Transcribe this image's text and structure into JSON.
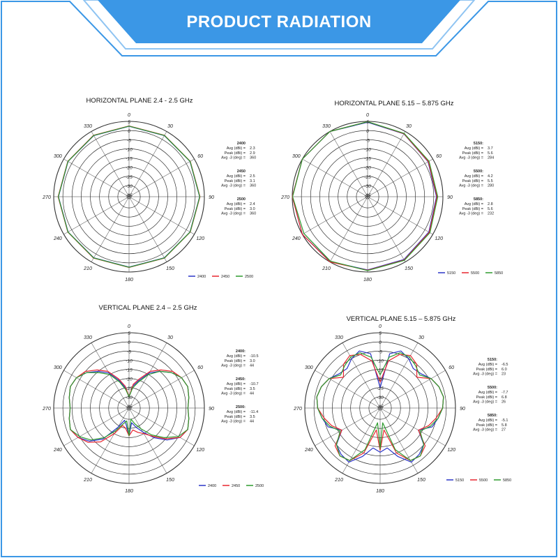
{
  "banner": {
    "title": "PRODUCT RADIATION",
    "color": "#3b97e6",
    "accent": "#8fc4f2"
  },
  "colors": {
    "frame": "#3b97e6",
    "grid": "#333333"
  },
  "chart_data": [
    {
      "type": "polar",
      "title": "HORIZONTAL PLANE 2.4 - 2.5 GHz",
      "radial_ticks": [
        "-35",
        "-30",
        "-25",
        "-20",
        "-15",
        "-10",
        "-5",
        "0",
        "5"
      ],
      "rlim": [
        -35,
        5
      ],
      "angle_ticks": [
        "0",
        "30",
        "60",
        "90",
        "120",
        "150",
        "180",
        "210",
        "240",
        "270",
        "300",
        "330"
      ],
      "grid": true,
      "legend_position": "bottom-right",
      "series": [
        {
          "name": "2400",
          "color": "#2b35c9",
          "angles": [
            0,
            30,
            60,
            90,
            120,
            150,
            180,
            210,
            240,
            270,
            300,
            330
          ],
          "values": [
            2.3,
            2.4,
            2.3,
            2.4,
            2.3,
            2.4,
            2.3,
            2.4,
            2.3,
            2.4,
            2.3,
            2.4
          ]
        },
        {
          "name": "2450",
          "color": "#e8262f",
          "angles": [
            0,
            30,
            60,
            90,
            120,
            150,
            180,
            210,
            240,
            270,
            300,
            330
          ],
          "values": [
            2.5,
            2.6,
            2.5,
            2.6,
            2.5,
            2.6,
            2.5,
            2.6,
            2.5,
            2.6,
            2.5,
            2.6
          ]
        },
        {
          "name": "2500",
          "color": "#2e9b2e",
          "angles": [
            0,
            30,
            60,
            90,
            120,
            150,
            180,
            210,
            240,
            270,
            300,
            330
          ],
          "values": [
            2.4,
            2.5,
            2.4,
            2.5,
            2.4,
            2.5,
            2.4,
            2.5,
            2.4,
            2.5,
            2.4,
            2.5
          ]
        }
      ],
      "stats": [
        {
          "freq": "2400",
          "rows": [
            {
              "label": "Avg (dBi) =",
              "value": "2.3"
            },
            {
              "label": "Peak (dBi) =",
              "value": "2.9"
            },
            {
              "label": "Avg -3 (deg) =",
              "value": "360"
            }
          ]
        },
        {
          "freq": "2450",
          "rows": [
            {
              "label": "Avg (dBi) =",
              "value": "2.5"
            },
            {
              "label": "Peak (dBi) =",
              "value": "3.1"
            },
            {
              "label": "Avg -3 (deg) =",
              "value": "360"
            }
          ]
        },
        {
          "freq": "2500",
          "rows": [
            {
              "label": "Avg (dBi) =",
              "value": "2.4"
            },
            {
              "label": "Peak (dBi) =",
              "value": "3.0"
            },
            {
              "label": "Avg -3 (deg) =",
              "value": "360"
            }
          ]
        }
      ]
    },
    {
      "type": "polar",
      "title": "HORIZONTAL PLANE 5.15 – 5.875 GHz",
      "radial_ticks": [
        "-35",
        "-30",
        "-25",
        "-20",
        "-15",
        "-10",
        "-5",
        "0",
        "5"
      ],
      "rlim": [
        -35,
        5
      ],
      "angle_ticks": [
        "0",
        "30",
        "60",
        "90",
        "120",
        "150",
        "180",
        "210",
        "240",
        "270",
        "300",
        "330"
      ],
      "grid": true,
      "legend_position": "bottom-right",
      "series": [
        {
          "name": "5150",
          "color": "#2b35c9",
          "angles": [
            0,
            30,
            60,
            90,
            120,
            150,
            180,
            210,
            240,
            270,
            300,
            330
          ],
          "values": [
            4.5,
            3.5,
            2.0,
            1.5,
            2.5,
            3.5,
            3.8,
            4.8,
            5.8,
            6.8,
            6.4,
            5.4
          ]
        },
        {
          "name": "5500",
          "color": "#e8262f",
          "angles": [
            0,
            30,
            60,
            90,
            120,
            150,
            180,
            210,
            240,
            270,
            300,
            330
          ],
          "values": [
            4.8,
            3.6,
            2.2,
            1.8,
            2.8,
            3.8,
            4.0,
            5.0,
            5.5,
            6.0,
            5.8,
            5.2
          ]
        },
        {
          "name": "5850",
          "color": "#2e9b2e",
          "angles": [
            0,
            30,
            60,
            90,
            120,
            150,
            180,
            210,
            240,
            270,
            300,
            330
          ],
          "values": [
            4.8,
            3.8,
            2.6,
            2.2,
            3.2,
            4.0,
            4.2,
            4.5,
            4.0,
            4.8,
            5.2,
            5.0
          ]
        }
      ],
      "stats": [
        {
          "freq": "5150:",
          "rows": [
            {
              "label": "Avg (dBi) =",
              "value": "3.7"
            },
            {
              "label": "Peak (dBi) =",
              "value": "5.6"
            },
            {
              "label": "Avg -3 (deg) =",
              "value": "284"
            }
          ]
        },
        {
          "freq": "5500:",
          "rows": [
            {
              "label": "Avg (dBi) =",
              "value": "4.2"
            },
            {
              "label": "Peak (dBi) =",
              "value": "5.5"
            },
            {
              "label": "Avg -3 (deg) =",
              "value": "280"
            }
          ]
        },
        {
          "freq": "5850:",
          "rows": [
            {
              "label": "Avg (dBi) =",
              "value": "2.8"
            },
            {
              "label": "Peak (dBi) =",
              "value": "5.6"
            },
            {
              "label": "Avg -3 (deg) =",
              "value": "232"
            }
          ]
        }
      ]
    },
    {
      "type": "polar",
      "title": "VERTICAL PLANE 2.4 – 2.5 GHz",
      "radial_ticks": [
        "-35",
        "-30",
        "-25",
        "-20",
        "-15",
        "-10",
        "-5",
        "0",
        "5"
      ],
      "rlim": [
        -35,
        5
      ],
      "angle_ticks": [
        "0",
        "30",
        "60",
        "90",
        "120",
        "150",
        "180",
        "210",
        "240",
        "270",
        "300",
        "330"
      ],
      "grid": true,
      "legend_position": "bottom-right",
      "series": [
        {
          "name": "2400",
          "color": "#2b35c9",
          "angles": [
            0,
            10,
            20,
            30,
            40,
            50,
            60,
            70,
            80,
            90,
            100,
            110,
            120,
            130,
            140,
            150,
            160,
            170,
            180,
            190,
            200,
            210,
            220,
            230,
            240,
            250,
            260,
            270,
            280,
            290,
            300,
            310,
            320,
            330,
            340,
            350
          ],
          "values": [
            -30,
            -24,
            -20,
            -14,
            -10,
            -6,
            -3,
            -2,
            -3,
            -4,
            -3,
            -2,
            -4,
            -9,
            -15,
            -21,
            -25,
            -28,
            -21,
            -27,
            -29,
            -24,
            -14,
            -8,
            -4,
            -2,
            -3,
            -4,
            -3,
            -2,
            -3,
            -6,
            -10,
            -14,
            -20,
            -25
          ]
        },
        {
          "name": "2450",
          "color": "#e8262f",
          "angles": [
            0,
            10,
            20,
            30,
            40,
            50,
            60,
            70,
            80,
            90,
            100,
            110,
            120,
            130,
            140,
            150,
            160,
            170,
            180,
            190,
            200,
            210,
            220,
            230,
            240,
            250,
            260,
            270,
            280,
            290,
            300,
            310,
            320,
            330,
            340,
            350
          ],
          "values": [
            -30,
            -23,
            -19,
            -13,
            -9,
            -5,
            -3,
            -2,
            -3,
            -4,
            -3,
            -2,
            -4,
            -10,
            -16,
            -20,
            -22,
            -24,
            -21,
            -25,
            -26,
            -20,
            -12,
            -7,
            -4,
            -2,
            -3,
            -4,
            -3,
            -2,
            -3,
            -5,
            -9,
            -13,
            -19,
            -24
          ]
        },
        {
          "name": "2500",
          "color": "#2e9b2e",
          "angles": [
            0,
            10,
            20,
            30,
            40,
            50,
            60,
            70,
            80,
            90,
            100,
            110,
            120,
            130,
            140,
            150,
            160,
            170,
            180,
            190,
            200,
            210,
            220,
            230,
            240,
            250,
            260,
            270,
            280,
            290,
            300,
            310,
            320,
            330,
            340,
            350
          ],
          "values": [
            -30,
            -25,
            -21,
            -15,
            -10,
            -6,
            -3,
            -2,
            -3,
            -4,
            -3,
            -2,
            -5,
            -11,
            -17,
            -23,
            -27,
            -30,
            -21,
            -29,
            -27,
            -22,
            -15,
            -9,
            -5,
            -2,
            -3,
            -4,
            -3,
            -2,
            -3,
            -6,
            -11,
            -15,
            -21,
            -26
          ]
        }
      ],
      "stats": [
        {
          "freq": "2400:",
          "rows": [
            {
              "label": "Avg (dBi) =",
              "value": "-10.5"
            },
            {
              "label": "Peak (dBi) =",
              "value": "3.0"
            },
            {
              "label": "Avg -3 (deg) =",
              "value": "44"
            }
          ]
        },
        {
          "freq": "2450:",
          "rows": [
            {
              "label": "Avg (dBi) =",
              "value": "-10.7"
            },
            {
              "label": "Peak (dBi) =",
              "value": "3.5"
            },
            {
              "label": "Avg -3 (deg) =",
              "value": "44"
            }
          ]
        },
        {
          "freq": "2500:",
          "rows": [
            {
              "label": "Avg (dBi) =",
              "value": "-11.4"
            },
            {
              "label": "Peak (dBi) =",
              "value": "3.5"
            },
            {
              "label": "Avg -3 (deg) =",
              "value": "44"
            }
          ]
        }
      ]
    },
    {
      "type": "polar",
      "title": "VERTICAL PLANE 5.15 – 5.875 GHz",
      "radial_ticks": [
        "-35",
        "-30",
        "-25",
        "-20",
        "-15",
        "-10",
        "-5",
        "0",
        "5"
      ],
      "rlim": [
        -35,
        5
      ],
      "angle_ticks": [
        "0",
        "30",
        "60",
        "90",
        "120",
        "150",
        "180",
        "210",
        "240",
        "270",
        "300",
        "330"
      ],
      "grid": true,
      "legend_position": "bottom-right",
      "series": [
        {
          "name": "5150",
          "color": "#2b35c9",
          "angles": [
            0,
            10,
            20,
            30,
            40,
            50,
            60,
            70,
            80,
            90,
            100,
            110,
            120,
            130,
            140,
            150,
            160,
            170,
            180,
            190,
            200,
            210,
            220,
            230,
            240,
            250,
            260,
            270,
            280,
            290,
            300,
            310,
            320,
            330,
            340,
            350
          ],
          "values": [
            -25,
            -6,
            -3,
            -5,
            -8,
            -7,
            -4,
            -2,
            -1,
            -2,
            -4,
            -6,
            -12,
            -5,
            -3,
            -2,
            -8,
            -14,
            -12,
            -14,
            -8,
            -2,
            -3,
            -5,
            -12,
            -6,
            -4,
            -2,
            -1,
            -2,
            -4,
            -7,
            -8,
            -5,
            -3,
            -6
          ]
        },
        {
          "name": "5500",
          "color": "#e8262f",
          "angles": [
            0,
            10,
            20,
            30,
            40,
            50,
            60,
            70,
            80,
            90,
            100,
            110,
            120,
            130,
            140,
            150,
            160,
            170,
            180,
            190,
            200,
            210,
            220,
            230,
            240,
            250,
            260,
            270,
            280,
            290,
            300,
            310,
            320,
            330,
            340,
            350
          ],
          "values": [
            -22,
            -10,
            -5,
            -3,
            -5,
            -10,
            -4,
            -2,
            -1,
            -2,
            -5,
            -8,
            -12,
            -4,
            -2,
            -3,
            -10,
            -24,
            -13,
            -24,
            -10,
            -3,
            -2,
            -4,
            -12,
            -8,
            -5,
            -2,
            -1,
            -2,
            -4,
            -10,
            -5,
            -3,
            -5,
            -10
          ]
        },
        {
          "name": "5850",
          "color": "#2e9b2e",
          "angles": [
            0,
            10,
            20,
            30,
            40,
            50,
            60,
            70,
            80,
            90,
            100,
            110,
            120,
            130,
            140,
            150,
            160,
            170,
            180,
            190,
            200,
            210,
            220,
            230,
            240,
            250,
            260,
            270,
            280,
            290,
            300,
            310,
            320,
            330,
            340,
            350
          ],
          "values": [
            -18,
            -8,
            -4,
            -4,
            -6,
            -8,
            -4,
            -2,
            -1,
            -2,
            -4,
            -7,
            -11,
            -5,
            -2,
            -3,
            -12,
            -28,
            -14,
            -28,
            -12,
            -3,
            -2,
            -5,
            -11,
            -7,
            -4,
            -2,
            -1,
            -2,
            -4,
            -8,
            -6,
            -4,
            -4,
            -8
          ]
        }
      ],
      "stats": [
        {
          "freq": "5150:",
          "rows": [
            {
              "label": "Avg (dBi) =",
              "value": "-6.5"
            },
            {
              "label": "Peak (dBi) =",
              "value": "6.0"
            },
            {
              "label": "Avg -3 (deg) =",
              "value": "23"
            }
          ]
        },
        {
          "freq": "5500:",
          "rows": [
            {
              "label": "Avg (dBi) =",
              "value": "-7.7"
            },
            {
              "label": "Peak (dBi) =",
              "value": "6.8"
            },
            {
              "label": "Avg -3 (deg) =",
              "value": "26"
            }
          ]
        },
        {
          "freq": "5850:",
          "rows": [
            {
              "label": "Avg (dBi) =",
              "value": "-5.1"
            },
            {
              "label": "Peak (dBi) =",
              "value": "5.8"
            },
            {
              "label": "Avg -3 (deg) =",
              "value": "27"
            }
          ]
        }
      ]
    }
  ]
}
